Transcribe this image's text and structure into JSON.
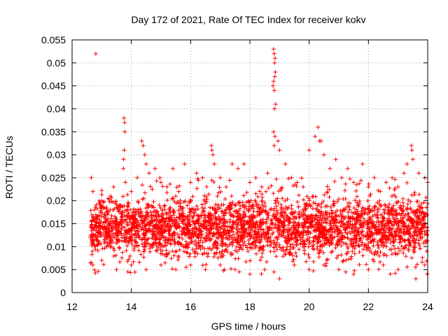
{
  "chart_data": {
    "type": "scatter",
    "title": "Day 172 of 2021, Rate Of TEC Index for receiver kokv",
    "xlabel": "GPS time / hours",
    "ylabel": "ROTI / TECUs",
    "xlim": [
      12,
      24
    ],
    "ylim": [
      0,
      0.055
    ],
    "xticks": [
      12,
      14,
      16,
      18,
      20,
      22,
      24
    ],
    "xtick_labels": [
      "12",
      "14",
      "16",
      "18",
      "20",
      "22",
      "24"
    ],
    "yticks": [
      0,
      0.005,
      0.01,
      0.015,
      0.02,
      0.025,
      0.03,
      0.035,
      0.04,
      0.045,
      0.05,
      0.055
    ],
    "ytick_labels": [
      "0",
      "0.005",
      "0.01",
      "0.015",
      "0.02",
      "0.025",
      "0.03",
      "0.035",
      "0.04",
      "0.045",
      "0.05",
      "0.055"
    ],
    "grid": true,
    "marker": "+",
    "color": "#ff0000",
    "series": [
      {
        "name": "ROTI",
        "points": [
          [
            12.65,
            0.025
          ],
          [
            12.7,
            0.022
          ],
          [
            12.75,
            0.018
          ],
          [
            12.8,
            0.052
          ],
          [
            12.85,
            0.012
          ],
          [
            12.9,
            0.015
          ],
          [
            13.0,
            0.02
          ],
          [
            13.1,
            0.017
          ],
          [
            13.2,
            0.013
          ],
          [
            13.3,
            0.021
          ],
          [
            13.4,
            0.023
          ],
          [
            13.5,
            0.016
          ],
          [
            13.6,
            0.019
          ],
          [
            13.75,
            0.038
          ],
          [
            13.77,
            0.037
          ],
          [
            13.78,
            0.035
          ],
          [
            13.76,
            0.031
          ],
          [
            13.74,
            0.029
          ],
          [
            13.73,
            0.027
          ],
          [
            13.8,
            0.024
          ],
          [
            14.0,
            0.022
          ],
          [
            14.2,
            0.025
          ],
          [
            14.35,
            0.033
          ],
          [
            14.4,
            0.032
          ],
          [
            14.45,
            0.03
          ],
          [
            14.5,
            0.028
          ],
          [
            14.6,
            0.026
          ],
          [
            14.8,
            0.027
          ],
          [
            15.0,
            0.024
          ],
          [
            15.2,
            0.023
          ],
          [
            15.4,
            0.027
          ],
          [
            15.6,
            0.022
          ],
          [
            15.8,
            0.028
          ],
          [
            16.0,
            0.024
          ],
          [
            16.2,
            0.026
          ],
          [
            16.4,
            0.025
          ],
          [
            16.7,
            0.032
          ],
          [
            16.72,
            0.031
          ],
          [
            16.75,
            0.03
          ],
          [
            16.8,
            0.028
          ],
          [
            17.0,
            0.025
          ],
          [
            17.2,
            0.023
          ],
          [
            17.4,
            0.028
          ],
          [
            17.6,
            0.027
          ],
          [
            17.8,
            0.028
          ],
          [
            18.0,
            0.024
          ],
          [
            18.2,
            0.025
          ],
          [
            18.4,
            0.023
          ],
          [
            18.6,
            0.026
          ],
          [
            18.8,
            0.053
          ],
          [
            18.82,
            0.052
          ],
          [
            18.85,
            0.051
          ],
          [
            18.83,
            0.05
          ],
          [
            18.86,
            0.048
          ],
          [
            18.84,
            0.047
          ],
          [
            18.8,
            0.046
          ],
          [
            18.78,
            0.045
          ],
          [
            18.82,
            0.044
          ],
          [
            18.87,
            0.041
          ],
          [
            18.83,
            0.04
          ],
          [
            18.8,
            0.035
          ],
          [
            18.85,
            0.034
          ],
          [
            18.82,
            0.032
          ],
          [
            18.95,
            0.033
          ],
          [
            19.0,
            0.031
          ],
          [
            19.2,
            0.028
          ],
          [
            19.4,
            0.025
          ],
          [
            19.6,
            0.024
          ],
          [
            19.8,
            0.023
          ],
          [
            20.0,
            0.031
          ],
          [
            20.2,
            0.034
          ],
          [
            20.3,
            0.036
          ],
          [
            20.35,
            0.033
          ],
          [
            20.4,
            0.033
          ],
          [
            20.5,
            0.03
          ],
          [
            20.7,
            0.027
          ],
          [
            20.9,
            0.029
          ],
          [
            21.1,
            0.025
          ],
          [
            21.3,
            0.027
          ],
          [
            21.5,
            0.024
          ],
          [
            21.8,
            0.028
          ],
          [
            22.0,
            0.023
          ],
          [
            22.2,
            0.025
          ],
          [
            22.4,
            0.022
          ],
          [
            22.6,
            0.024
          ],
          [
            22.8,
            0.025
          ],
          [
            23.0,
            0.023
          ],
          [
            23.2,
            0.026
          ],
          [
            23.3,
            0.028
          ],
          [
            23.45,
            0.032
          ],
          [
            23.47,
            0.031
          ],
          [
            23.5,
            0.029
          ],
          [
            23.7,
            0.026
          ],
          [
            23.9,
            0.025
          ],
          [
            24.0,
            0.024
          ],
          [
            12.7,
            0.006
          ],
          [
            13.0,
            0.007
          ],
          [
            13.5,
            0.005
          ],
          [
            14.0,
            0.006
          ],
          [
            14.5,
            0.005
          ],
          [
            15.0,
            0.006
          ],
          [
            15.5,
            0.005
          ],
          [
            16.0,
            0.006
          ],
          [
            16.5,
            0.005
          ],
          [
            17.0,
            0.006
          ],
          [
            17.5,
            0.005
          ],
          [
            18.0,
            0.004
          ],
          [
            18.5,
            0.005
          ],
          [
            19.0,
            0.003
          ],
          [
            19.5,
            0.006
          ],
          [
            20.0,
            0.005
          ],
          [
            20.5,
            0.006
          ],
          [
            21.0,
            0.005
          ],
          [
            21.5,
            0.004
          ],
          [
            22.0,
            0.005
          ],
          [
            22.5,
            0.006
          ],
          [
            23.0,
            0.005
          ],
          [
            23.6,
            0.003
          ],
          [
            23.9,
            0.006
          ]
        ]
      }
    ]
  }
}
